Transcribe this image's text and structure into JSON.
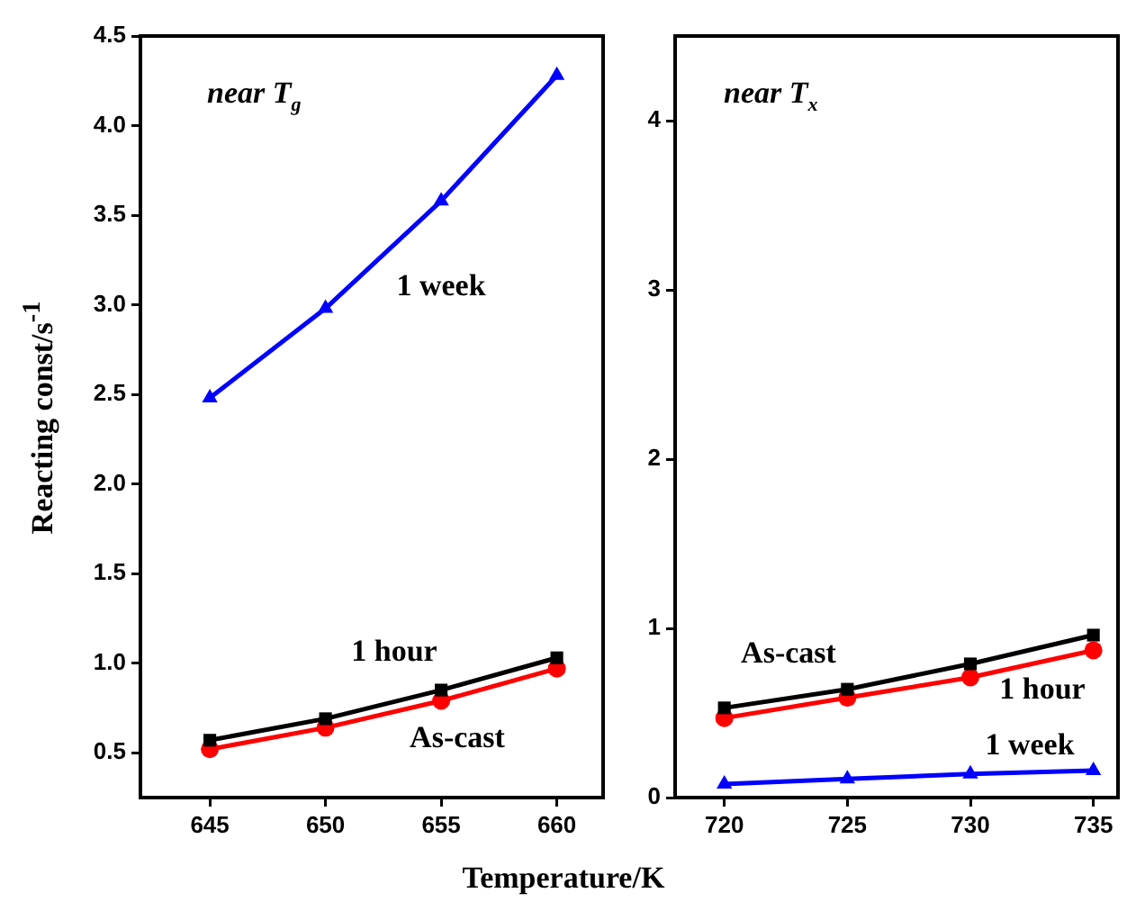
{
  "chart_data": [
    {
      "type": "line",
      "ylabel": "Reacting const/s$^{-1}$",
      "xlabel": "Temperature/K",
      "x": [
        645,
        650,
        655,
        660
      ],
      "xlim": [
        642,
        662
      ],
      "xticks": [
        645,
        650,
        655,
        660
      ],
      "ylim": [
        0.25,
        4.5
      ],
      "yticks": [
        0.5,
        {
          "value": 1,
          "label": "1.0"
        },
        1.5,
        {
          "value": 2,
          "label": "2.0"
        },
        2.5,
        {
          "value": 3,
          "label": "3.0"
        },
        3.5,
        {
          "value": 4,
          "label": "4.0"
        },
        4.5
      ],
      "series": [
        {
          "name": "1 week",
          "color": "#0000ff",
          "marker": "triangle",
          "values": [
            2.48,
            2.98,
            3.58,
            4.28
          ]
        },
        {
          "name": "1 hour",
          "color": "#000000",
          "marker": "square",
          "values": [
            0.57,
            0.69,
            0.85,
            1.03
          ]
        },
        {
          "name": "As-cast",
          "color": "#ff0000",
          "marker": "circle",
          "values": [
            0.52,
            0.64,
            0.79,
            0.97
          ]
        }
      ],
      "annotations": [
        "near T$_{g}$"
      ]
    },
    {
      "type": "line",
      "x": [
        720,
        725,
        730,
        735
      ],
      "xlim": [
        718,
        736
      ],
      "xticks": [
        720,
        725,
        730,
        735
      ],
      "ylim": [
        0,
        4.5
      ],
      "yticks": [
        0,
        1,
        2,
        3,
        4
      ],
      "series": [
        {
          "name": "1 week",
          "color": "#0000ff",
          "marker": "triangle",
          "values": [
            0.08,
            0.11,
            0.14,
            0.16
          ]
        },
        {
          "name": "As-cast",
          "color": "#000000",
          "marker": "square",
          "values": [
            0.53,
            0.64,
            0.79,
            0.96
          ]
        },
        {
          "name": "1 hour",
          "color": "#ff0000",
          "marker": "circle",
          "values": [
            0.47,
            0.59,
            0.71,
            0.87
          ]
        }
      ],
      "annotations": [
        "near T$_{x}$"
      ]
    }
  ]
}
